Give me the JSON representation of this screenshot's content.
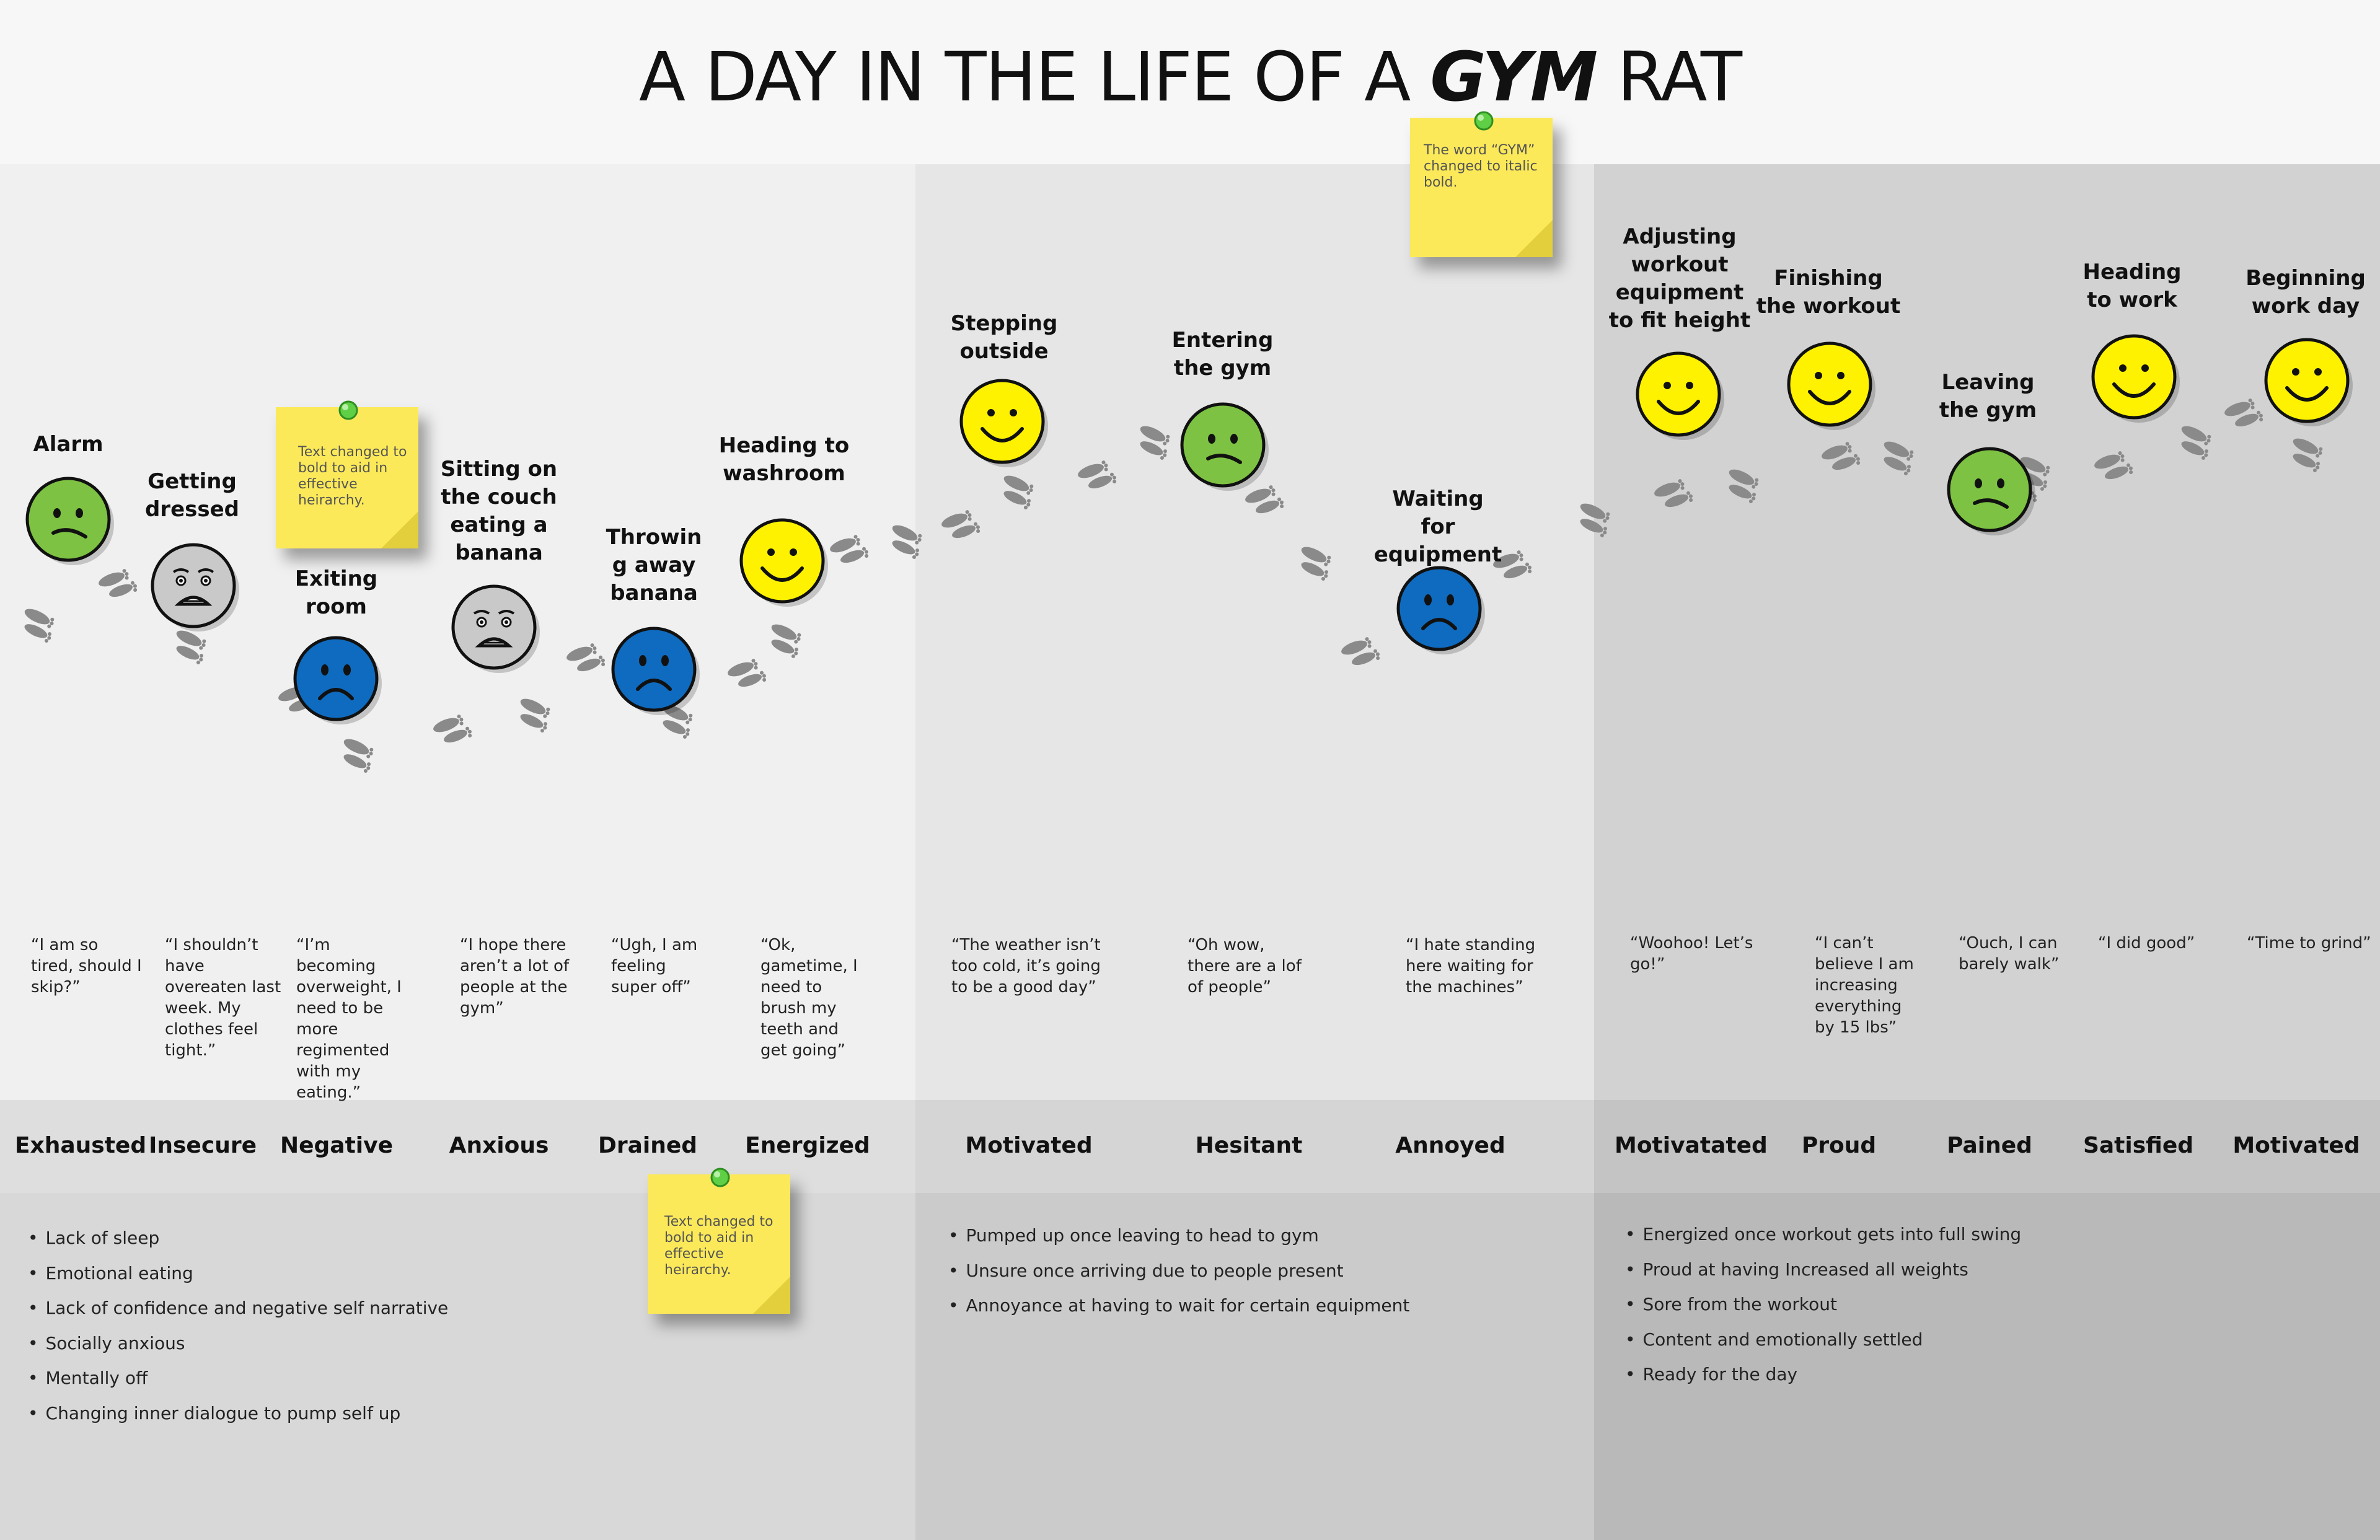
{
  "title": {
    "prefix": "A DAY IN THE LIFE OF A ",
    "emphasis": "GYM",
    "suffix": " RAT"
  },
  "colors": {
    "green": "#7dc242",
    "gray": "#c9c9c9",
    "blue": "#0f6bbf",
    "yellow": "#fff200"
  },
  "stages": [
    {
      "label": "Alarm",
      "mood": "meh",
      "color": "green",
      "quote": "“I am so tired, should I skip?”",
      "emotion": "Exhausted"
    },
    {
      "label": "Getting dressed",
      "mood": "worried",
      "color": "gray",
      "quote": "“I shouldn’t have overeaten last week. My clothes feel tight.”",
      "emotion": "Insecure"
    },
    {
      "label": "Exiting room",
      "mood": "sad",
      "color": "blue",
      "quote": "“I’m becoming overweight, I need to be more regimented with my eating.”",
      "emotion": "Negative"
    },
    {
      "label": "Sitting on the couch eating a banana",
      "mood": "worried",
      "color": "gray",
      "quote": "“I hope there aren’t a lot of people at the gym”",
      "emotion": "Anxious"
    },
    {
      "label": "Throwin g away banana",
      "mood": "sad",
      "color": "blue",
      "quote": "“Ugh, I am feeling super off”",
      "emotion": "Drained"
    },
    {
      "label": "Heading to washroom",
      "mood": "happy",
      "color": "yellow",
      "quote": "“Ok, gametime, I need to brush my teeth and get going”",
      "emotion": "Energized"
    },
    {
      "label": "Stepping outside",
      "mood": "happy",
      "color": "yellow",
      "quote": "“The weather isn’t too cold, it’s going to be a good day”",
      "emotion": "Motivated"
    },
    {
      "label": "Entering the gym",
      "mood": "meh",
      "color": "green",
      "quote": "“Oh wow, there are a lof of people”",
      "emotion": "Hesitant"
    },
    {
      "label": "Waiting for equipment",
      "mood": "sad",
      "color": "blue",
      "quote": "“I hate standing here waiting for the machines”",
      "emotion": "Annoyed"
    },
    {
      "label": "Adjusting workout equipment to fit height",
      "mood": "happy",
      "color": "yellow",
      "quote": "“Woohoo! Let’s go!”",
      "emotion": "Motivatated"
    },
    {
      "label": "Finishing the workout",
      "mood": "happy",
      "color": "yellow",
      "quote": "“I can’t believe I am increasing everything by 15 lbs”",
      "emotion": "Proud"
    },
    {
      "label": "Leaving the gym",
      "mood": "meh",
      "color": "green",
      "quote": "“Ouch, I can barely walk”",
      "emotion": "Pained"
    },
    {
      "label": "Heading to work",
      "mood": "happy",
      "color": "yellow",
      "quote": "“I did good”",
      "emotion": "Satisfied"
    },
    {
      "label": "Beginning work day",
      "mood": "happy",
      "color": "yellow",
      "quote": "“Time to grind”",
      "emotion": "Motivated"
    }
  ],
  "insights": [
    [
      "Lack of sleep",
      "Emotional eating",
      "Lack of confidence and negative self narrative",
      "Socially anxious",
      "Mentally off",
      "Changing inner dialogue to pump self up"
    ],
    [
      "Pumped up once leaving to head to gym",
      "Unsure once arriving due to people present",
      "Annoyance at having to wait for certain equipment"
    ],
    [
      "Energized once workout gets into full swing",
      "Proud at having Increased all weights",
      "Sore from the workout",
      "Content and emotionally settled",
      "Ready for the day"
    ]
  ],
  "notes": [
    "Text changed to bold to aid in effective heirarchy.",
    "The word “GYM” changed to italic bold.",
    "Text changed to bold to aid in effective heirarchy."
  ]
}
